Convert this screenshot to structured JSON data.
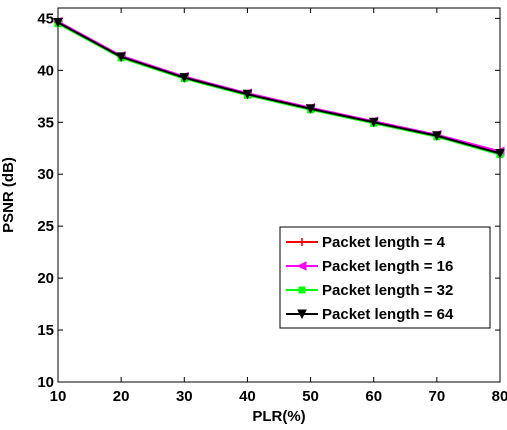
{
  "chart_data": {
    "type": "line",
    "title": "",
    "xlabel": "PLR(%)",
    "ylabel": "PSNR (dB)",
    "xlim": [
      10,
      80
    ],
    "ylim": [
      10,
      46
    ],
    "xticks": [
      10,
      20,
      30,
      40,
      50,
      60,
      70,
      80
    ],
    "yticks": [
      10,
      15,
      20,
      25,
      30,
      35,
      40,
      45
    ],
    "grid": false,
    "legend_position": "lower-right",
    "x": [
      10,
      20,
      30,
      40,
      50,
      60,
      70,
      80
    ],
    "series": [
      {
        "name": "Packet length = 4",
        "color": "#ff0000",
        "marker": "plus",
        "values": [
          44.6,
          41.3,
          39.3,
          37.7,
          36.3,
          35.0,
          33.7,
          32.1
        ]
      },
      {
        "name": "Packet length = 16",
        "color": "#ff00ff",
        "marker": "triangle-left",
        "values": [
          44.7,
          41.4,
          39.4,
          37.8,
          36.4,
          35.1,
          33.8,
          32.2
        ]
      },
      {
        "name": "Packet length = 32",
        "color": "#00ff00",
        "marker": "square",
        "values": [
          44.5,
          41.2,
          39.2,
          37.6,
          36.2,
          34.9,
          33.6,
          31.9
        ]
      },
      {
        "name": "Packet length = 64",
        "color": "#000000",
        "marker": "triangle-down",
        "values": [
          44.6,
          41.3,
          39.3,
          37.7,
          36.3,
          35.0,
          33.7,
          32.0
        ]
      }
    ]
  }
}
